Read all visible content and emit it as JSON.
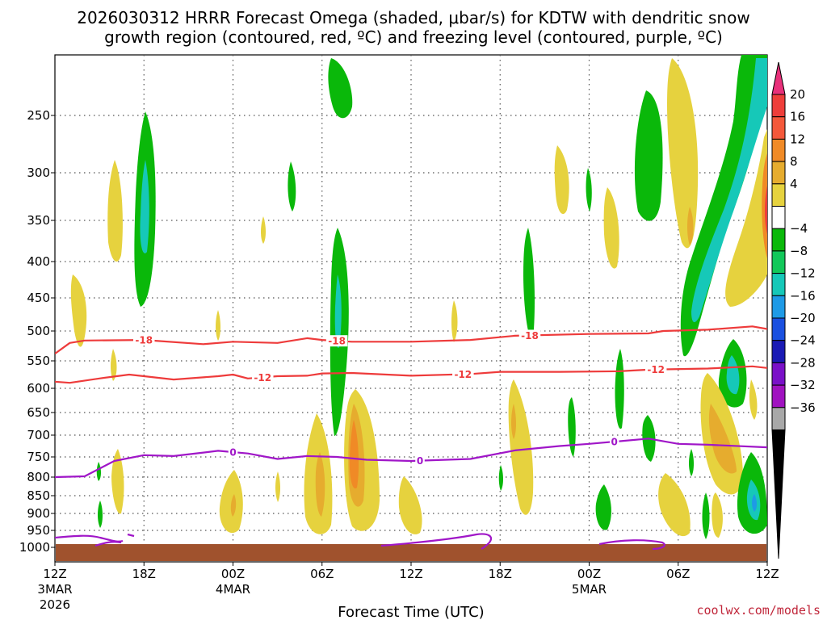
{
  "title_line1": "2026030312 HRRR Forecast Omega (shaded, μbar/s) for KDTW with dendritic snow",
  "title_line2": "growth region (contoured, red, ºC) and freezing level (contoured, purple, ºC)",
  "credit": "coolwx.com/models",
  "chart_data": {
    "type": "heatmap",
    "station": "KDTW",
    "model_run": "2026030312 HRRR",
    "xlabel": "Forecast Time (UTC)",
    "ylabel": "",
    "x_range_hours": [
      0,
      48
    ],
    "y_range_hpa": [
      1025,
      200
    ],
    "y_ticks": [
      250,
      300,
      350,
      400,
      450,
      500,
      550,
      600,
      650,
      700,
      750,
      800,
      850,
      900,
      950,
      1000
    ],
    "x_ticks": [
      {
        "h": 0,
        "label": "12Z",
        "date": "3MAR",
        "year": "2026"
      },
      {
        "h": 6,
        "label": "18Z",
        "date": "",
        "year": ""
      },
      {
        "h": 12,
        "label": "00Z",
        "date": "4MAR",
        "year": ""
      },
      {
        "h": 18,
        "label": "06Z",
        "date": "",
        "year": ""
      },
      {
        "h": 24,
        "label": "12Z",
        "date": "",
        "year": ""
      },
      {
        "h": 30,
        "label": "18Z",
        "date": "",
        "year": ""
      },
      {
        "h": 36,
        "label": "00Z",
        "date": "5MAR",
        "year": ""
      },
      {
        "h": 42,
        "label": "06Z",
        "date": "",
        "year": ""
      },
      {
        "h": 48,
        "label": "12Z",
        "date": "",
        "year": ""
      }
    ],
    "colorbar": {
      "labels": [
        "20",
        "16",
        "12",
        "8",
        "4",
        "−4",
        "−8",
        "−12",
        "−16",
        "−20",
        "−24",
        "−28",
        "−32",
        "−36"
      ],
      "colors": [
        "#e8307a",
        "#ee3e3a",
        "#f4583a",
        "#f08a26",
        "#e6ac2e",
        "#e6d23e",
        "#ffffff",
        "#0ab80a",
        "#12c85a",
        "#16c8b8",
        "#1e9ae6",
        "#1a50e0",
        "#1a1ab4",
        "#7a10c8",
        "#a012c0",
        "#a8a8a8",
        "#000000"
      ]
    },
    "contours": [
      {
        "name": "-18",
        "color": "#ee3b3b",
        "label": "-18",
        "points": [
          [
            0,
            538
          ],
          [
            1,
            520
          ],
          [
            2,
            516
          ],
          [
            6,
            515
          ],
          [
            10,
            522
          ],
          [
            12,
            518
          ],
          [
            15,
            520
          ],
          [
            17,
            512
          ],
          [
            18,
            515
          ],
          [
            20,
            518
          ],
          [
            24,
            518
          ],
          [
            28,
            515
          ],
          [
            31,
            508
          ],
          [
            36,
            505
          ],
          [
            40,
            504
          ],
          [
            41,
            500
          ],
          [
            44,
            498
          ],
          [
            47,
            493
          ],
          [
            48,
            497
          ]
        ],
        "label_h": [
          6,
          19,
          32
        ]
      },
      {
        "name": "-12",
        "color": "#ee3b3b",
        "label": "-12",
        "points": [
          [
            0,
            588
          ],
          [
            1,
            590
          ],
          [
            3,
            582
          ],
          [
            5,
            575
          ],
          [
            6,
            578
          ],
          [
            8,
            584
          ],
          [
            11,
            578
          ],
          [
            12,
            575
          ],
          [
            13,
            582
          ],
          [
            15,
            578
          ],
          [
            17,
            577
          ],
          [
            18,
            573
          ],
          [
            20,
            572
          ],
          [
            24,
            577
          ],
          [
            28,
            574
          ],
          [
            30,
            570
          ],
          [
            34,
            570
          ],
          [
            38,
            569
          ],
          [
            40,
            566
          ],
          [
            44,
            564
          ],
          [
            47,
            560
          ],
          [
            48,
            563
          ]
        ],
        "label_h": [
          14,
          27.5,
          40.5
        ]
      },
      {
        "name": "0",
        "color": "#a016c8",
        "label": "0",
        "points": [
          [
            0,
            800
          ],
          [
            2,
            798
          ],
          [
            4,
            760
          ],
          [
            6,
            746
          ],
          [
            8,
            748
          ],
          [
            10,
            740
          ],
          [
            11,
            736
          ],
          [
            13,
            742
          ],
          [
            15,
            755
          ],
          [
            17,
            748
          ],
          [
            19,
            750
          ],
          [
            21,
            757
          ],
          [
            24,
            760
          ],
          [
            28,
            755
          ],
          [
            31,
            735
          ],
          [
            34,
            725
          ],
          [
            36,
            720
          ],
          [
            38,
            714
          ],
          [
            40,
            708
          ],
          [
            42,
            720
          ],
          [
            44,
            722
          ],
          [
            48,
            728
          ]
        ],
        "label_h": [
          12,
          24.6,
          37.7
        ]
      }
    ]
  }
}
